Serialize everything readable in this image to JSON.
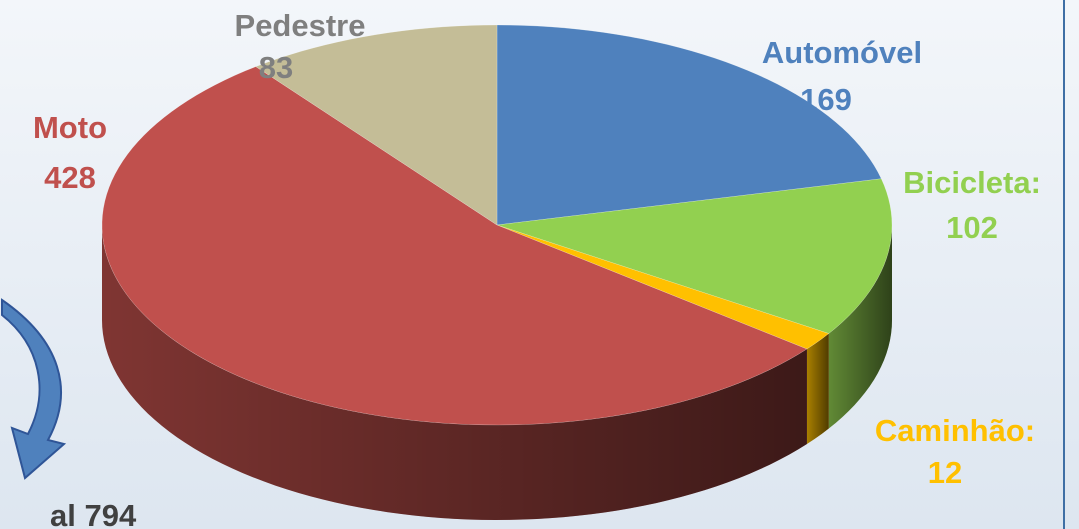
{
  "chart_data": {
    "type": "pie",
    "categories": [
      "Automóvel",
      "Bicicleta:",
      "Caminhão:",
      "Moto",
      "Pedestre"
    ],
    "values": [
      169,
      102,
      12,
      428,
      83
    ],
    "colors": [
      "#4f81bd",
      "#92d050",
      "#ffc000",
      "#c0504d",
      "#c4bd97"
    ],
    "label_colors": [
      "#4f81bd",
      "#92d050",
      "#ffc000",
      "#c0504d",
      "#7f7f7f"
    ],
    "annotation": "al 794"
  }
}
